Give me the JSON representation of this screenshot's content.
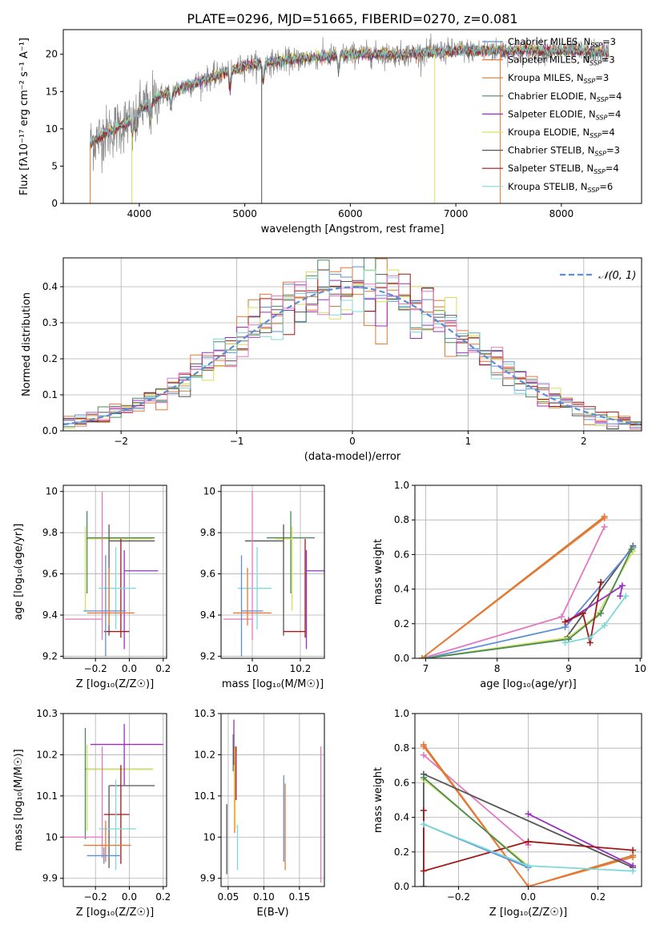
{
  "figure": {
    "title": "PLATE=0296, MJD=51665, FIBERID=0270, z=0.081"
  },
  "colors": {
    "Chabrier MILES": "#5b8ed6",
    "Salpeter MILES": "#ee7733",
    "Kroupa MILES": "#c87f37",
    "Chabrier ELODIE": "#4a8a5a",
    "Salpeter ELODIE": "#9b30c0",
    "Kroupa ELODIE": "#d6e05a",
    "Chabrier STELIB": "#555555",
    "Salpeter STELIB": "#a01818",
    "Kroupa STELIB": "#7fd8d8",
    "pink": "#e377c2",
    "data": "#888888"
  },
  "chart_data": [
    {
      "id": "spectrum",
      "type": "line",
      "xlabel": "wavelength [Angstrom, rest frame]",
      "ylabel": "Flux [fλ10⁻¹⁷ erg cm⁻² s⁻¹ A⁻¹]",
      "xlim": [
        3280,
        8760
      ],
      "ylim": [
        0,
        23.3
      ],
      "xticks": [
        4000,
        5000,
        6000,
        7000,
        8000
      ],
      "yticks": [
        0,
        5,
        10,
        15,
        20
      ],
      "grid": false,
      "legend_position": "right",
      "legend": [
        {
          "prefix": "Chabrier MILES, N",
          "sub": "SSP",
          "suffix": "=3",
          "color": "#5b8ed6"
        },
        {
          "prefix": "Salpeter MILES, N",
          "sub": "SSP",
          "suffix": "=3",
          "color": "#ee7733"
        },
        {
          "prefix": "Kroupa MILES, N",
          "sub": "SSP",
          "suffix": "=3",
          "color": "#c87f37"
        },
        {
          "prefix": "Chabrier ELODIE, N",
          "sub": "SSP",
          "suffix": "=4",
          "color": "#4a8a5a"
        },
        {
          "prefix": "Salpeter ELODIE, N",
          "sub": "SSP",
          "suffix": "=4",
          "color": "#9b30c0"
        },
        {
          "prefix": "Kroupa ELODIE, N",
          "sub": "SSP",
          "suffix": "=4",
          "color": "#d6e05a"
        },
        {
          "prefix": "Chabrier STELIB, N",
          "sub": "SSP",
          "suffix": "=3",
          "color": "#555555"
        },
        {
          "prefix": "Salpeter STELIB, N",
          "sub": "SSP",
          "suffix": "=4",
          "color": "#a01818"
        },
        {
          "prefix": "Kroupa STELIB, N",
          "sub": "SSP",
          "suffix": "=6",
          "color": "#7fd8d8"
        }
      ],
      "continuum": [
        [
          3530,
          8
        ],
        [
          3700,
          9.5
        ],
        [
          3900,
          11
        ],
        [
          4000,
          12.5
        ],
        [
          4200,
          14.5
        ],
        [
          4500,
          16
        ],
        [
          4800,
          17.5
        ],
        [
          5000,
          18.5
        ],
        [
          5300,
          19
        ],
        [
          5600,
          19.5
        ],
        [
          6000,
          20
        ],
        [
          6500,
          20
        ],
        [
          7000,
          20.5
        ],
        [
          7500,
          20.5
        ],
        [
          8000,
          20.5
        ],
        [
          8500,
          20.2
        ]
      ]
    },
    {
      "id": "residuals",
      "type": "step",
      "xlabel": "(data-model)/error",
      "ylabel": "Normed distribution",
      "xlim": [
        -2.5,
        2.5
      ],
      "ylim": [
        0,
        0.48
      ],
      "xticks": [
        -2,
        -1,
        0,
        1,
        2
      ],
      "xtick_labels": [
        "−2",
        "−1",
        "0",
        "1",
        "2"
      ],
      "yticks": [
        0.0,
        0.1,
        0.2,
        0.3,
        0.4
      ],
      "grid": true,
      "legend": [
        "𝒩(0, 1)"
      ],
      "legend_position": "top-right",
      "gaussian": {
        "mu": 0,
        "sigma": 1
      },
      "bin_width": 0.1
    },
    {
      "id": "age_vs_Z",
      "type": "errorbar",
      "xlabel": "Z [log₁₀(Z/Z☉)]",
      "ylabel": "age  [log₁₀(age/yr)]",
      "xlim": [
        -0.39,
        0.22
      ],
      "ylim": [
        9.19,
        10.03
      ],
      "xticks": [
        -0.2,
        0.0,
        0.2
      ],
      "xtick_labels": [
        "−0.2",
        "0.0",
        "0.2"
      ],
      "yticks": [
        9.2,
        9.4,
        9.6,
        9.8,
        10.0
      ],
      "grid": true,
      "points": [
        {
          "x": -0.26,
          "xerr": [
            0.0,
            0.4
          ],
          "y": 9.77,
          "yerr": [
            0.35,
            0.06
          ],
          "c": "#d6e05a"
        },
        {
          "x": -0.25,
          "xerr": [
            0.0,
            0.4
          ],
          "y": 9.775,
          "yerr": [
            0.27,
            0.13
          ],
          "c": "#4a8a5a"
        },
        {
          "x": -0.12,
          "xerr": [
            0.0,
            0.27
          ],
          "y": 9.76,
          "yerr": [
            0.46,
            0.08
          ],
          "c": "#555555"
        },
        {
          "x": -0.16,
          "xerr": [
            0.22,
            0.0
          ],
          "y": 9.38,
          "yerr": [
            0.1,
            0.62
          ],
          "c": "#e377c2"
        },
        {
          "x": -0.03,
          "xerr": [
            0.0,
            0.2
          ],
          "y": 9.615,
          "yerr": [
            0.38,
            0.1
          ],
          "c": "#9b30c0"
        },
        {
          "x": -0.05,
          "xerr": [
            0.1,
            0.05
          ],
          "y": 9.32,
          "yerr": [
            0.03,
            0.45
          ],
          "c": "#a01818"
        },
        {
          "x": -0.08,
          "xerr": [
            0.1,
            0.12
          ],
          "y": 9.53,
          "yerr": [
            0.2,
            0.2
          ],
          "c": "#7fd8d8"
        },
        {
          "x": -0.14,
          "xerr": [
            0.13,
            0.12
          ],
          "y": 9.42,
          "yerr": [
            0.22,
            0.27
          ],
          "c": "#5b8ed6"
        },
        {
          "x": -0.12,
          "xerr": [
            0.13,
            0.15
          ],
          "y": 9.41,
          "yerr": [
            0.06,
            0.22
          ],
          "c": "#ee7733"
        }
      ]
    },
    {
      "id": "age_vs_mass",
      "type": "errorbar",
      "xlabel": "mass [log₁₀(M/M☉)]",
      "ylabel": "",
      "xlim": [
        9.87,
        10.3
      ],
      "ylim": [
        9.19,
        10.03
      ],
      "xticks": [
        10.0,
        10.2
      ],
      "yticks": [
        9.2,
        9.4,
        9.6,
        9.8,
        10.0
      ],
      "grid": true,
      "points": [
        {
          "x": 10.16,
          "xerr": [
            0.1,
            0.1
          ],
          "y": 9.775,
          "yerr": [
            0.27,
            0.13
          ],
          "c": "#4a8a5a"
        },
        {
          "x": 10.165,
          "xerr": [
            0.07,
            0.0
          ],
          "y": 9.77,
          "yerr": [
            0.35,
            0.06
          ],
          "c": "#d6e05a"
        },
        {
          "x": 10.13,
          "xerr": [
            0.16,
            0.0
          ],
          "y": 9.76,
          "yerr": [
            0.46,
            0.08
          ],
          "c": "#555555"
        },
        {
          "x": 10.0,
          "xerr": [
            0.12,
            0.0
          ],
          "y": 9.38,
          "yerr": [
            0.1,
            0.62
          ],
          "c": "#e377c2"
        },
        {
          "x": 10.225,
          "xerr": [
            0.0,
            0.08
          ],
          "y": 9.615,
          "yerr": [
            0.38,
            0.1
          ],
          "c": "#9b30c0"
        },
        {
          "x": 10.22,
          "xerr": [
            0.09,
            0.0
          ],
          "y": 9.32,
          "yerr": [
            0.03,
            0.45
          ],
          "c": "#a01818"
        },
        {
          "x": 10.02,
          "xerr": [
            0.08,
            0.06
          ],
          "y": 9.53,
          "yerr": [
            0.2,
            0.2
          ],
          "c": "#7fd8d8"
        },
        {
          "x": 9.955,
          "xerr": [
            0.0,
            0.09
          ],
          "y": 9.42,
          "yerr": [
            0.22,
            0.27
          ],
          "c": "#5b8ed6"
        },
        {
          "x": 9.98,
          "xerr": [
            0.06,
            0.1
          ],
          "y": 9.41,
          "yerr": [
            0.06,
            0.22
          ],
          "c": "#ee7733"
        }
      ]
    },
    {
      "id": "weight_vs_age",
      "type": "line",
      "xlabel": "age  [log₁₀(age/yr)]",
      "ylabel": "mass weight",
      "xlim": [
        6.85,
        10.02
      ],
      "ylim": [
        0,
        1.0
      ],
      "xticks": [
        7,
        8,
        9,
        10
      ],
      "yticks": [
        0.0,
        0.2,
        0.4,
        0.6,
        0.8,
        1.0
      ],
      "grid": true,
      "series": [
        {
          "c": "#e377c2",
          "points": [
            [
              6.95,
              0.0
            ],
            [
              8.9,
              0.24
            ],
            [
              9.5,
              0.76
            ]
          ]
        },
        {
          "c": "#c87f37",
          "points": [
            [
              6.95,
              0.0
            ],
            [
              9.5,
              0.82
            ]
          ]
        },
        {
          "c": "#ee7733",
          "points": [
            [
              6.95,
              0.0
            ],
            [
              9.5,
              0.81
            ]
          ]
        },
        {
          "c": "#555555",
          "points": [
            [
              7.0,
              0.0
            ],
            [
              8.95,
              0.11
            ],
            [
              9.9,
              0.65
            ]
          ]
        },
        {
          "c": "#5b8ed6",
          "points": [
            [
              7.0,
              0.0
            ],
            [
              8.95,
              0.18
            ],
            [
              9.9,
              0.64
            ]
          ]
        },
        {
          "c": "#d6e05a",
          "points": [
            [
              7.0,
              0.0
            ],
            [
              9.0,
              0.12
            ],
            [
              9.4,
              0.25
            ],
            [
              9.9,
              0.62
            ]
          ]
        },
        {
          "c": "#4a8a5a",
          "points": [
            [
              7.0,
              0.0
            ],
            [
              9.0,
              0.11
            ],
            [
              9.45,
              0.26
            ],
            [
              9.88,
              0.63
            ]
          ]
        },
        {
          "c": "#9b30c0",
          "points": [
            [
              9.0,
              0.22
            ],
            [
              9.75,
              0.42
            ],
            [
              9.72,
              0.36
            ]
          ]
        },
        {
          "c": "#a01818",
          "points": [
            [
              8.95,
              0.21
            ],
            [
              9.2,
              0.26
            ],
            [
              9.3,
              0.09
            ],
            [
              9.45,
              0.44
            ]
          ]
        },
        {
          "c": "#7fd8d8",
          "points": [
            [
              8.95,
              0.09
            ],
            [
              9.3,
              0.12
            ],
            [
              9.5,
              0.19
            ],
            [
              9.8,
              0.36
            ]
          ]
        }
      ]
    },
    {
      "id": "mass_vs_Z",
      "type": "errorbar",
      "xlabel": "Z [log₁₀(Z/Z☉)]",
      "ylabel": "mass [log₁₀(M/M☉)]",
      "xlim": [
        -0.39,
        0.22
      ],
      "ylim": [
        9.88,
        10.3
      ],
      "xticks": [
        -0.2,
        0.0,
        0.2
      ],
      "xtick_labels": [
        "−0.2",
        "0.0",
        "0.2"
      ],
      "yticks": [
        9.9,
        10.0,
        10.1,
        10.2,
        10.3
      ],
      "grid": true,
      "points": [
        {
          "x": -0.26,
          "xerr": [
            0.0,
            0.4
          ],
          "y": 10.165,
          "yerr": [
            0.17,
            0.1
          ],
          "c": "#4a8a5a"
        },
        {
          "x": -0.25,
          "xerr": [
            0.0,
            0.39
          ],
          "y": 10.165,
          "yerr": [
            0.15,
            0.06
          ],
          "c": "#d6e05a"
        },
        {
          "x": -0.12,
          "xerr": [
            0.0,
            0.27
          ],
          "y": 10.125,
          "yerr": [
            0.2,
            0.0
          ],
          "c": "#555555"
        },
        {
          "x": -0.03,
          "xerr": [
            0.2,
            0.23
          ],
          "y": 10.225,
          "yerr": [
            0.1,
            0.05
          ],
          "c": "#9b30c0"
        },
        {
          "x": -0.05,
          "xerr": [
            0.1,
            0.05
          ],
          "y": 10.055,
          "yerr": [
            0.12,
            0.12
          ],
          "c": "#a01818"
        },
        {
          "x": -0.16,
          "xerr": [
            0.23,
            0.0
          ],
          "y": 10.0,
          "yerr": [
            0.05,
            0.22
          ],
          "c": "#e377c2"
        },
        {
          "x": -0.08,
          "xerr": [
            0.1,
            0.12
          ],
          "y": 10.02,
          "yerr": [
            0.1,
            0.12
          ],
          "c": "#7fd8d8"
        },
        {
          "x": -0.14,
          "xerr": [
            0.13,
            0.15
          ],
          "y": 9.98,
          "yerr": [
            0.04,
            0.06
          ],
          "c": "#ee7733"
        },
        {
          "x": -0.15,
          "xerr": [
            0.1,
            0.1
          ],
          "y": 9.955,
          "yerr": [
            0.02,
            0.02
          ],
          "c": "#5b8ed6"
        }
      ]
    },
    {
      "id": "mass_vs_ebv",
      "type": "errorbar",
      "xlabel": "E(B-V)",
      "ylabel": "",
      "xlim": [
        0.04,
        0.185
      ],
      "ylim": [
        9.88,
        10.3
      ],
      "xticks": [
        0.05,
        0.1,
        0.15
      ],
      "xtick_labels": [
        "0.05",
        "0.10",
        "0.15"
      ],
      "yticks": [
        9.9,
        10.0,
        10.1,
        10.2,
        10.3
      ],
      "grid": true,
      "points": [
        {
          "x": 0.048,
          "yerr": [
            0.09,
            0.08
          ],
          "y": 10.0,
          "c": "#555555"
        },
        {
          "x": 0.057,
          "yerr": [
            0.06,
            0.03
          ],
          "y": 10.22,
          "c": "#4a8a5a"
        },
        {
          "x": 0.058,
          "yerr": [
            0.05,
            0.06
          ],
          "y": 10.225,
          "c": "#9b30c0"
        },
        {
          "x": 0.059,
          "yerr": [
            0.1,
            0.11
          ],
          "y": 10.11,
          "c": "#ee7733"
        },
        {
          "x": 0.06,
          "yerr": [
            0.1,
            0.1
          ],
          "y": 10.12,
          "c": "#d6e05a"
        },
        {
          "x": 0.061,
          "yerr": [
            0.03,
            0.1
          ],
          "y": 10.12,
          "c": "#a01818"
        },
        {
          "x": 0.063,
          "yerr": [
            0.06,
            0.05
          ],
          "y": 9.98,
          "c": "#7fd8d8"
        },
        {
          "x": 0.128,
          "yerr": [
            0.09,
            0.12
          ],
          "y": 10.03,
          "c": "#5b8ed6"
        },
        {
          "x": 0.13,
          "yerr": [
            0.1,
            0.11
          ],
          "y": 10.02,
          "c": "#ee7733"
        },
        {
          "x": 0.18,
          "yerr": [
            0.11,
            0.22
          ],
          "y": 10.0,
          "c": "#e377c2"
        }
      ]
    },
    {
      "id": "weight_vs_Z",
      "type": "line",
      "xlabel": "Z [log₁₀(Z/Z☉)]",
      "ylabel": "mass weight",
      "xlim": [
        -0.325,
        0.325
      ],
      "ylim": [
        0,
        1.0
      ],
      "xticks": [
        -0.2,
        0.0,
        0.2
      ],
      "xtick_labels": [
        "−0.2",
        "0.0",
        "0.2"
      ],
      "yticks": [
        0.0,
        0.2,
        0.4,
        0.6,
        0.8,
        1.0
      ],
      "grid": true,
      "series": [
        {
          "c": "#e377c2",
          "points": [
            [
              -0.3,
              0.76
            ],
            [
              0.0,
              0.24
            ]
          ]
        },
        {
          "c": "#c87f37",
          "points": [
            [
              -0.3,
              0.82
            ],
            [
              0.0,
              0.0
            ],
            [
              0.3,
              0.18
            ]
          ]
        },
        {
          "c": "#ee7733",
          "points": [
            [
              -0.3,
              0.81
            ],
            [
              0.0,
              0.0
            ],
            [
              0.3,
              0.17
            ]
          ]
        },
        {
          "c": "#555555",
          "points": [
            [
              -0.3,
              0.0
            ],
            [
              -0.3,
              0.65
            ],
            [
              0.3,
              0.11
            ]
          ]
        },
        {
          "c": "#9b30c0",
          "points": [
            [
              0.0,
              0.42
            ],
            [
              0.3,
              0.12
            ]
          ]
        },
        {
          "c": "#a01818",
          "points": [
            [
              -0.3,
              0.44
            ],
            [
              -0.3,
              0.09
            ],
            [
              0.0,
              0.26
            ],
            [
              0.3,
              0.21
            ]
          ]
        },
        {
          "c": "#d6e05a",
          "points": [
            [
              -0.3,
              0.62
            ],
            [
              0.0,
              0.12
            ]
          ]
        },
        {
          "c": "#4a8a5a",
          "points": [
            [
              -0.3,
              0.63
            ],
            [
              0.0,
              0.11
            ]
          ]
        },
        {
          "c": "#5b8ed6",
          "points": [
            [
              -0.3,
              0.36
            ],
            [
              0.0,
              0.11
            ]
          ]
        },
        {
          "c": "#7fd8d8",
          "points": [
            [
              -0.3,
              0.36
            ],
            [
              0.0,
              0.12
            ],
            [
              0.3,
              0.09
            ]
          ]
        }
      ]
    }
  ]
}
